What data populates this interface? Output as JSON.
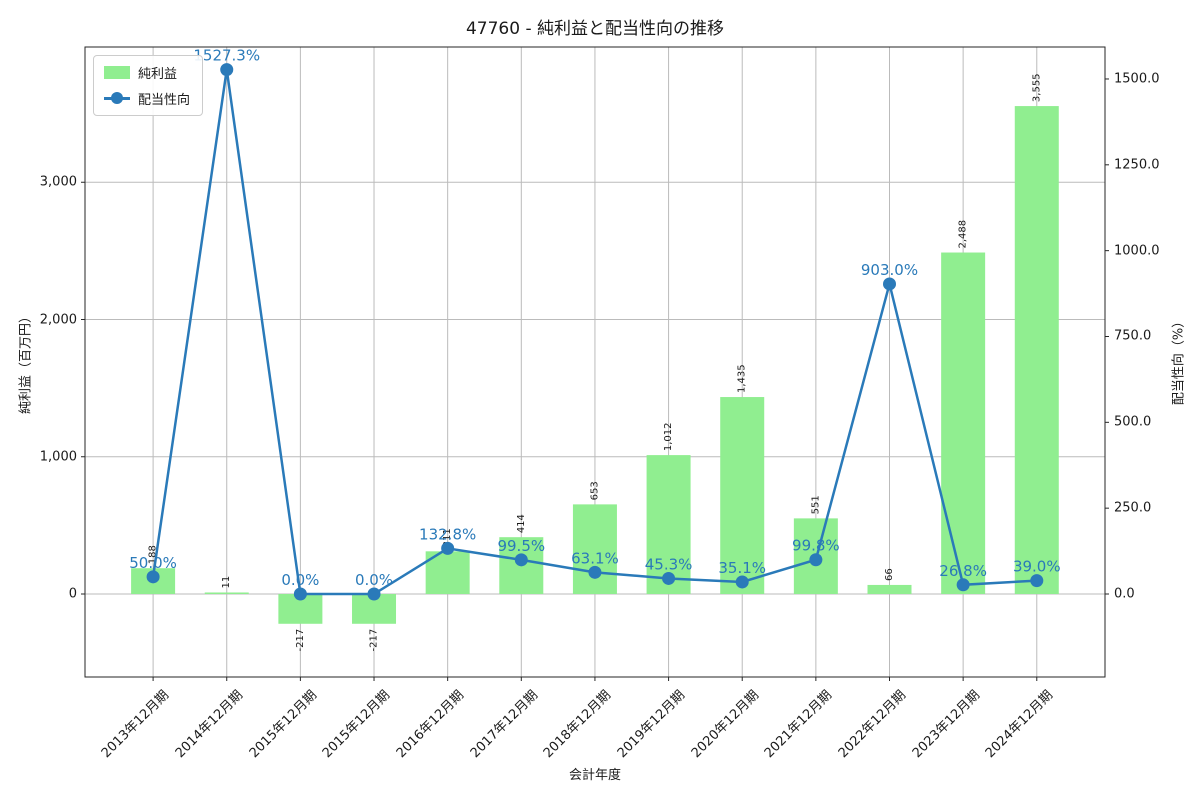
{
  "chart_data": {
    "type": "bar+line-combo",
    "title": "47760 - 純利益と配当性向の推移",
    "xlabel": "会計年度",
    "ylabel_left": "純利益（百万円）",
    "ylabel_right": "配当性向（%）",
    "grid": true,
    "legend_position": "upper left",
    "categories": [
      "2013年12月期",
      "2014年12月期",
      "2015年12月期",
      "2015年12月期",
      "2016年12月期",
      "2017年12月期",
      "2018年12月期",
      "2019年12月期",
      "2020年12月期",
      "2021年12月期",
      "2022年12月期",
      "2023年12月期",
      "2024年12月期"
    ],
    "series": [
      {
        "name": "純利益",
        "type": "bar",
        "axis": "left",
        "color": "#90ee90",
        "values": [
          188,
          11,
          -217,
          -217,
          311,
          414,
          653,
          1012,
          1435,
          551,
          66,
          2488,
          3555
        ],
        "labels": [
          "188",
          "11",
          "-217",
          "-217",
          "311",
          "414",
          "653",
          "1,012",
          "1,435",
          "551",
          "66",
          "2,488",
          "3,555"
        ]
      },
      {
        "name": "配当性向",
        "type": "line",
        "axis": "right",
        "color": "#2a7ab9",
        "marker": "circle",
        "values": [
          50.0,
          1527.3,
          0.0,
          0.0,
          132.8,
          99.5,
          63.1,
          45.3,
          35.1,
          99.8,
          903.0,
          26.8,
          39.0
        ],
        "labels": [
          "50.0%",
          "1527.3%",
          "0.0%",
          "0.0%",
          "132.8%",
          "99.5%",
          "63.1%",
          "45.3%",
          "35.1%",
          "99.8%",
          "903.0%",
          "26.8%",
          "39.0%"
        ]
      }
    ],
    "left_axis": {
      "tick_labels": [
        "0",
        "1,000",
        "2,000",
        "3,000"
      ],
      "tick_values": [
        0,
        1000,
        2000,
        3000
      ],
      "range": [
        -605,
        3985
      ]
    },
    "right_axis": {
      "tick_labels": [
        "0.0",
        "250.0",
        "500.0",
        "750.0",
        "1000.0",
        "1250.0",
        "1500.0"
      ],
      "tick_values": [
        0,
        250,
        500,
        750,
        1000,
        1250,
        1500
      ],
      "range": [
        -242,
        1594
      ]
    },
    "colors": {
      "bar": "#90ee90",
      "line": "#2a7ab9",
      "value_label": "#2a7ab9",
      "bar_label": "#1a1a1a",
      "grid": "#bbbbbb",
      "spine": "#262626"
    }
  }
}
